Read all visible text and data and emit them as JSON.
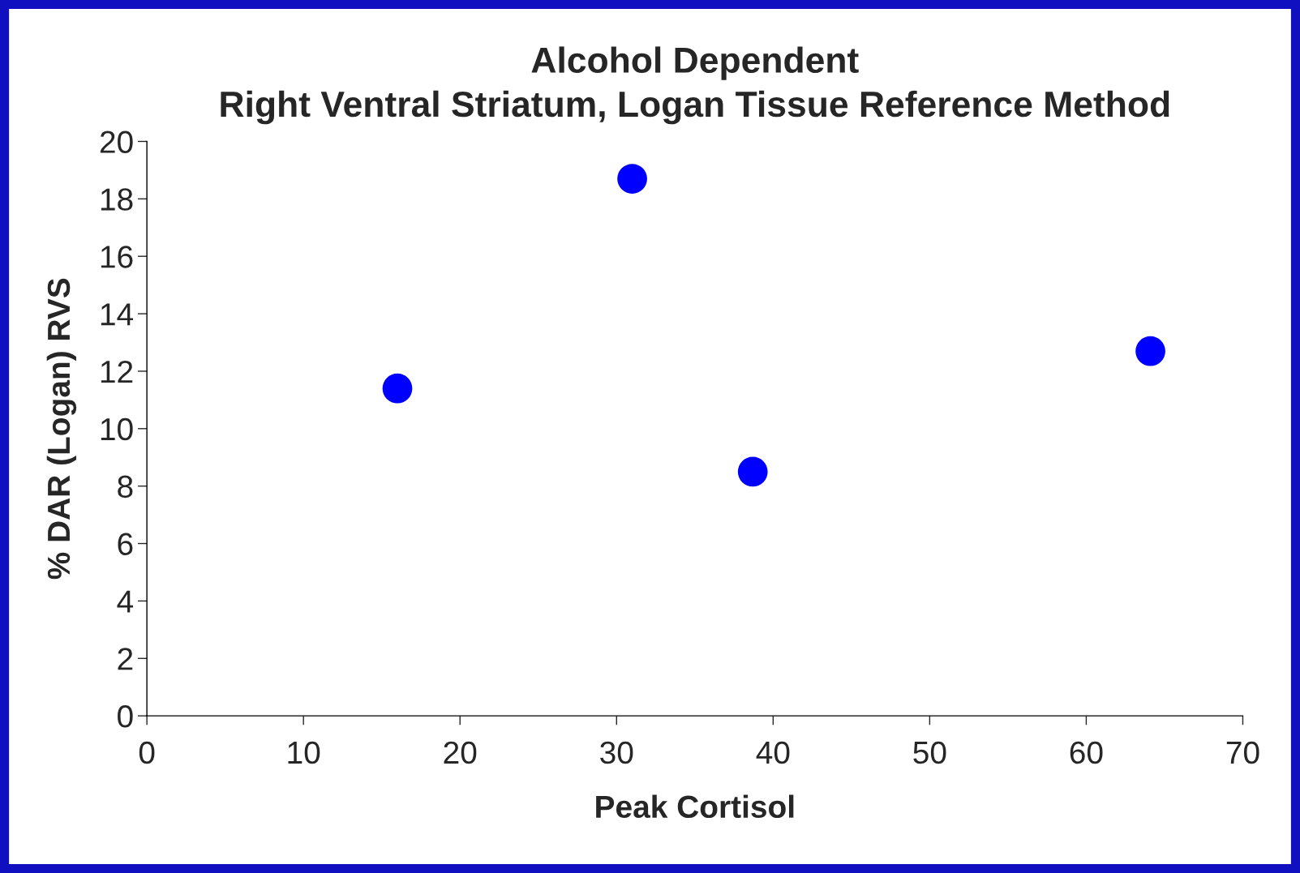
{
  "chart_data": {
    "type": "scatter",
    "title": "Alcohol Dependent\nRight Ventral Striatum, Logan Tissue Reference Method",
    "xlabel": "Peak Cortisol",
    "ylabel": "% DAR (Logan) RVS",
    "x": [
      16.0,
      31.0,
      38.7,
      64.1
    ],
    "series": [
      {
        "color": "#0000ff",
        "values": [
          11.4,
          18.7,
          8.5,
          12.7
        ]
      }
    ],
    "xlim": [
      0,
      70
    ],
    "xticks": [
      0,
      10,
      20,
      30,
      40,
      50,
      60,
      70
    ],
    "ylim": [
      0,
      20
    ],
    "yticks": [
      0,
      2,
      4,
      6,
      8,
      10,
      12,
      14,
      16,
      18,
      20
    ],
    "grid": false,
    "legend": false,
    "marker": "circle"
  }
}
